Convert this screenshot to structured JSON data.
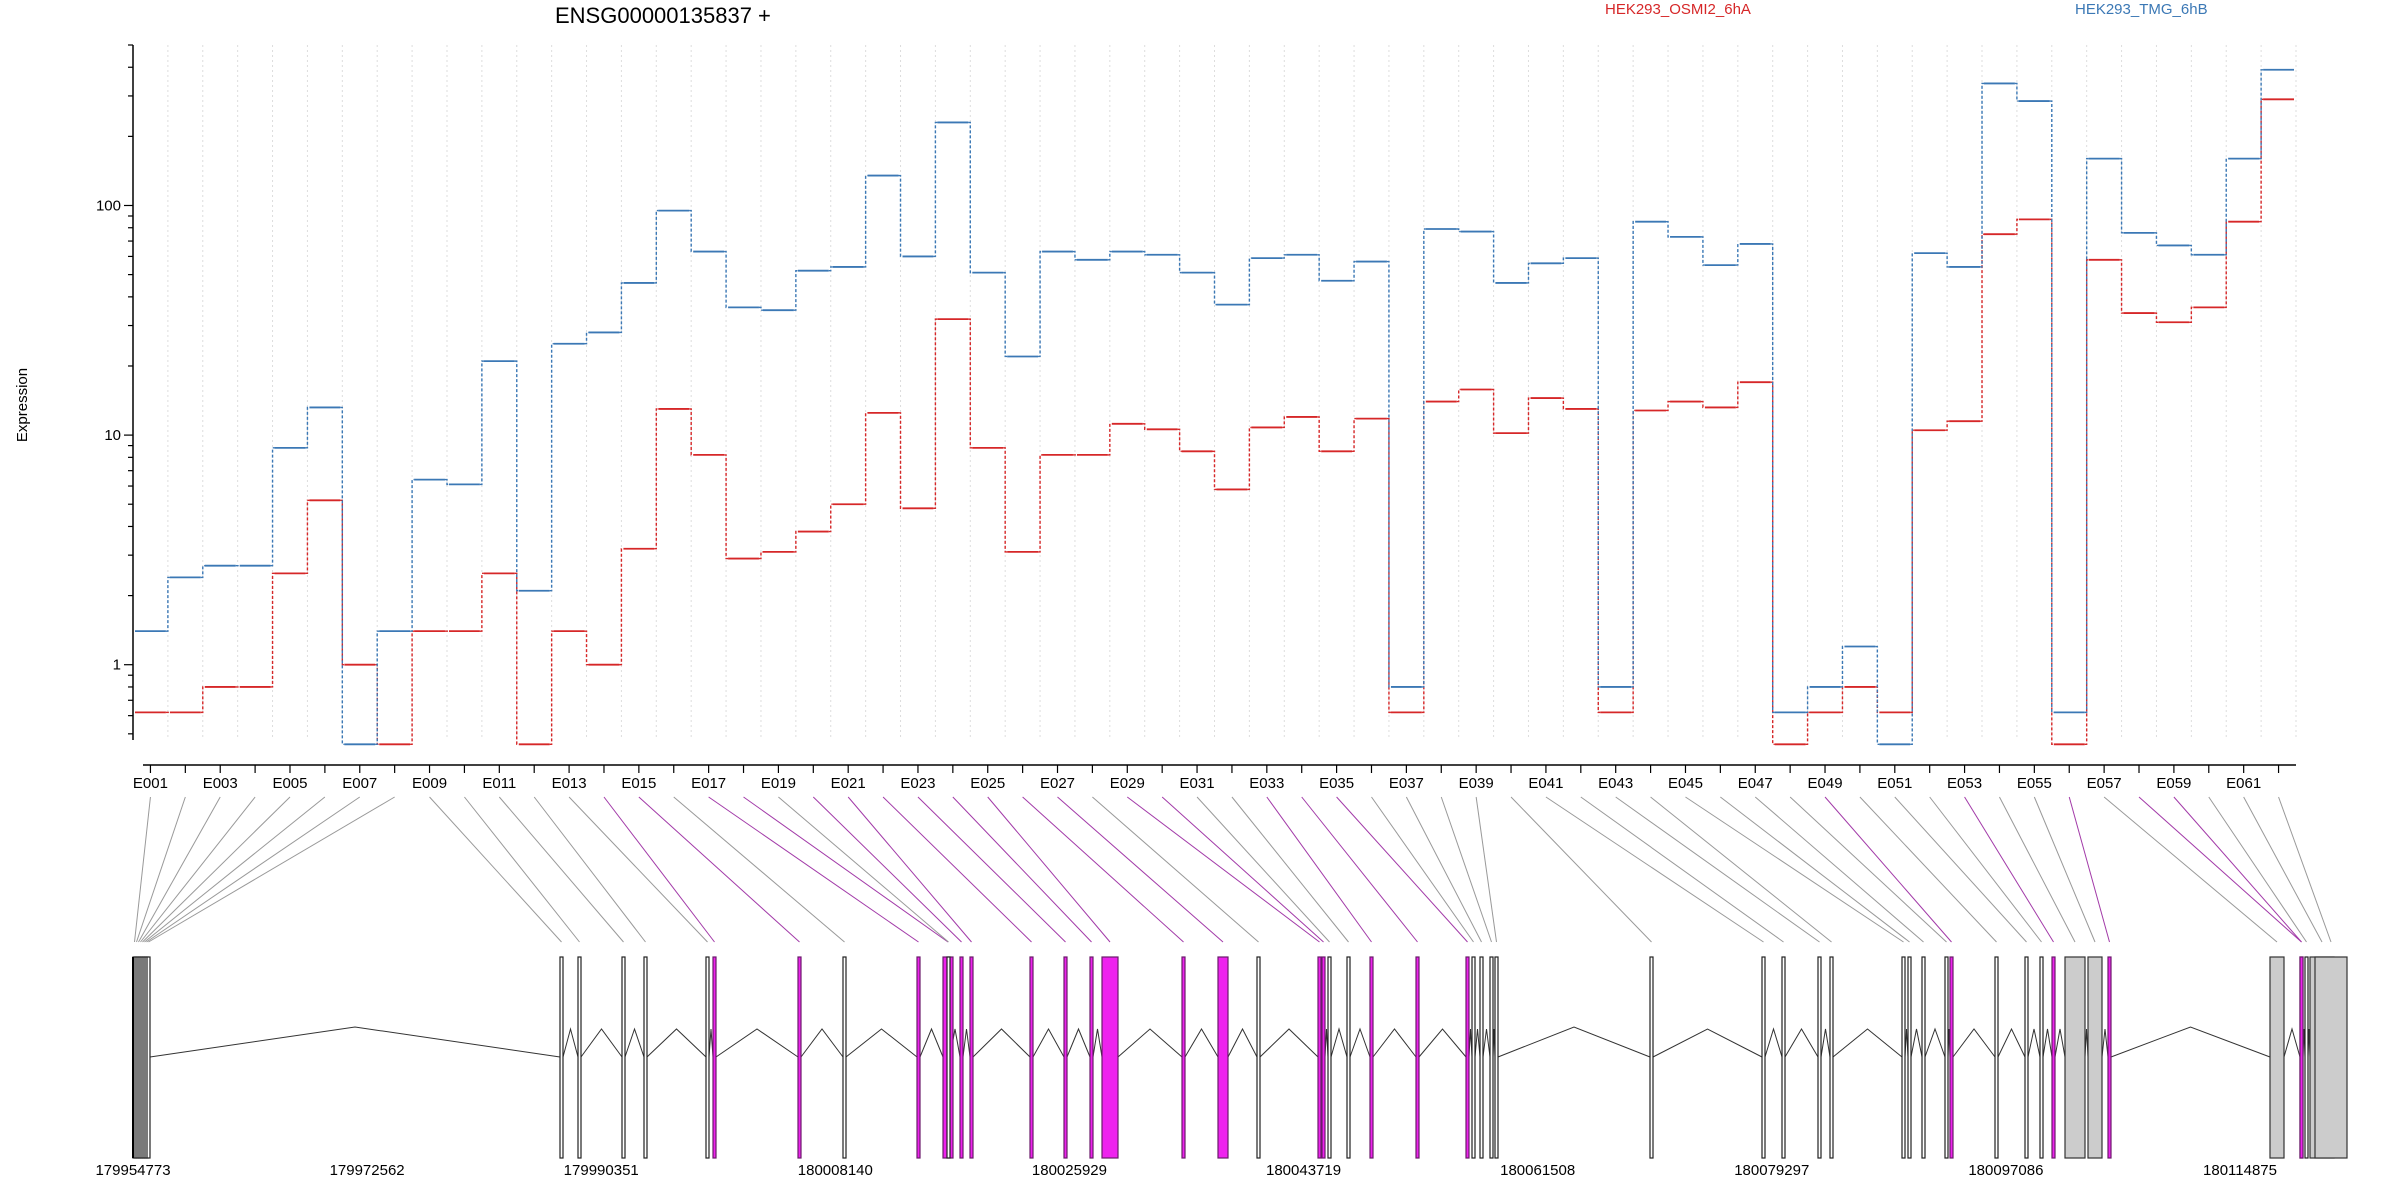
{
  "chart_data": {
    "type": "line",
    "title": "ENSG00000135837 +",
    "ylabel": "Expression",
    "y_scale": "log",
    "ylim": [
      0.47,
      500
    ],
    "y_ticks": [
      1,
      10,
      100
    ],
    "y_tick_labels": [
      "1",
      "10",
      "100"
    ],
    "grid": "vertical-dotted",
    "legend_position": "top",
    "exon_labels": [
      "E001",
      "E003",
      "E005",
      "E007",
      "E009",
      "E011",
      "E013",
      "E015",
      "E017",
      "E019",
      "E021",
      "E023",
      "E025",
      "E027",
      "E029",
      "E031",
      "E033",
      "E035",
      "E037",
      "E039",
      "E041",
      "E043",
      "E045",
      "E047",
      "E049",
      "E051",
      "E053",
      "E055",
      "E057",
      "E059",
      "E061"
    ],
    "series": [
      {
        "name": "HEK293_OSMI2_6hA",
        "color": "#d62728",
        "values": [
          0.62,
          0.62,
          0.8,
          0.8,
          2.5,
          5.2,
          1.0,
          0.45,
          1.4,
          1.4,
          2.5,
          0.45,
          1.4,
          1.0,
          3.2,
          13,
          8.2,
          2.9,
          3.1,
          3.8,
          5.0,
          12.5,
          4.8,
          32,
          8.8,
          3.1,
          8.2,
          8.2,
          11.2,
          10.6,
          8.5,
          5.8,
          10.8,
          12.0,
          8.5,
          11.8,
          0.62,
          14.0,
          15.8,
          10.2,
          14.5,
          13.0,
          0.62,
          12.8,
          14.0,
          13.2,
          17.0,
          0.45,
          0.62,
          0.8,
          0.62,
          10.5,
          11.5,
          75,
          87,
          0.45,
          58,
          34,
          31,
          36,
          85,
          290
        ]
      },
      {
        "name": "HEK293_TMG_6hB",
        "color": "#3b78b5",
        "values": [
          1.4,
          2.4,
          2.7,
          2.7,
          8.8,
          13.2,
          0.45,
          1.4,
          6.4,
          6.1,
          21,
          2.1,
          25,
          28,
          46,
          95,
          63,
          36,
          35,
          52,
          54,
          135,
          60,
          230,
          51,
          22,
          63,
          58,
          63,
          61,
          51,
          37,
          59,
          61,
          47,
          57,
          0.8,
          79,
          77,
          46,
          56,
          59,
          0.8,
          85,
          73,
          55,
          68,
          0.62,
          0.8,
          1.2,
          0.45,
          62,
          54,
          340,
          285,
          0.62,
          160,
          76,
          67,
          61,
          160,
          390
        ]
      }
    ],
    "x_axis_genomic_labels": [
      "179954773",
      "179972562",
      "179990351",
      "180008140",
      "180025929",
      "180043719",
      "180061508",
      "180079297",
      "180097086",
      "180114875"
    ]
  }
}
